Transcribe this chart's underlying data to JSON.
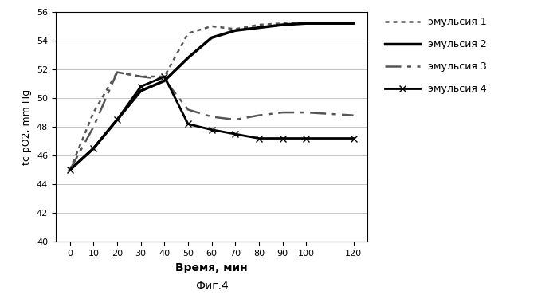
{
  "title": "",
  "xlabel": "Время, мин",
  "ylabel": "tc pO2, mm Hg",
  "caption": "Фиг.4",
  "ylim": [
    40,
    56
  ],
  "yticks": [
    40,
    42,
    44,
    46,
    48,
    50,
    52,
    54,
    56
  ],
  "xticks": [
    0,
    10,
    20,
    30,
    40,
    50,
    60,
    70,
    80,
    90,
    100,
    120
  ],
  "series": [
    {
      "label": "эмульсия 1",
      "x": [
        0,
        10,
        20,
        30,
        40,
        50,
        60,
        70,
        80,
        90,
        100,
        120
      ],
      "y": [
        45,
        49.0,
        51.8,
        51.5,
        51.5,
        54.5,
        55.0,
        54.8,
        55.1,
        55.2,
        55.2,
        55.2
      ],
      "linestyle": "densedot",
      "linewidth": 1.8,
      "color": "#555555",
      "marker": null,
      "markersize": 0
    },
    {
      "label": "эмульсия 2",
      "x": [
        0,
        10,
        20,
        30,
        40,
        50,
        60,
        70,
        80,
        90,
        100,
        120
      ],
      "y": [
        45,
        46.5,
        48.5,
        50.5,
        51.2,
        52.8,
        54.2,
        54.7,
        54.9,
        55.1,
        55.2,
        55.2
      ],
      "linestyle": "solid",
      "linewidth": 2.5,
      "color": "#000000",
      "marker": null,
      "markersize": 0
    },
    {
      "label": "эмульсия 3",
      "x": [
        0,
        10,
        20,
        30,
        40,
        50,
        60,
        70,
        80,
        90,
        100,
        120
      ],
      "y": [
        45,
        48.0,
        51.8,
        51.5,
        51.3,
        49.2,
        48.7,
        48.5,
        48.8,
        49.0,
        49.0,
        48.8
      ],
      "linestyle": "dashdot",
      "linewidth": 1.8,
      "color": "#555555",
      "marker": null,
      "markersize": 0
    },
    {
      "label": "эмульсия 4",
      "x": [
        0,
        10,
        20,
        30,
        40,
        50,
        60,
        70,
        80,
        90,
        100,
        120
      ],
      "y": [
        45,
        46.5,
        48.5,
        50.8,
        51.5,
        48.2,
        47.8,
        47.5,
        47.2,
        47.2,
        47.2,
        47.2
      ],
      "linestyle": "solid",
      "linewidth": 2.0,
      "color": "#000000",
      "marker": "x",
      "markersize": 6
    }
  ],
  "background_color": "#ffffff",
  "grid_color": "#bbbbbb"
}
